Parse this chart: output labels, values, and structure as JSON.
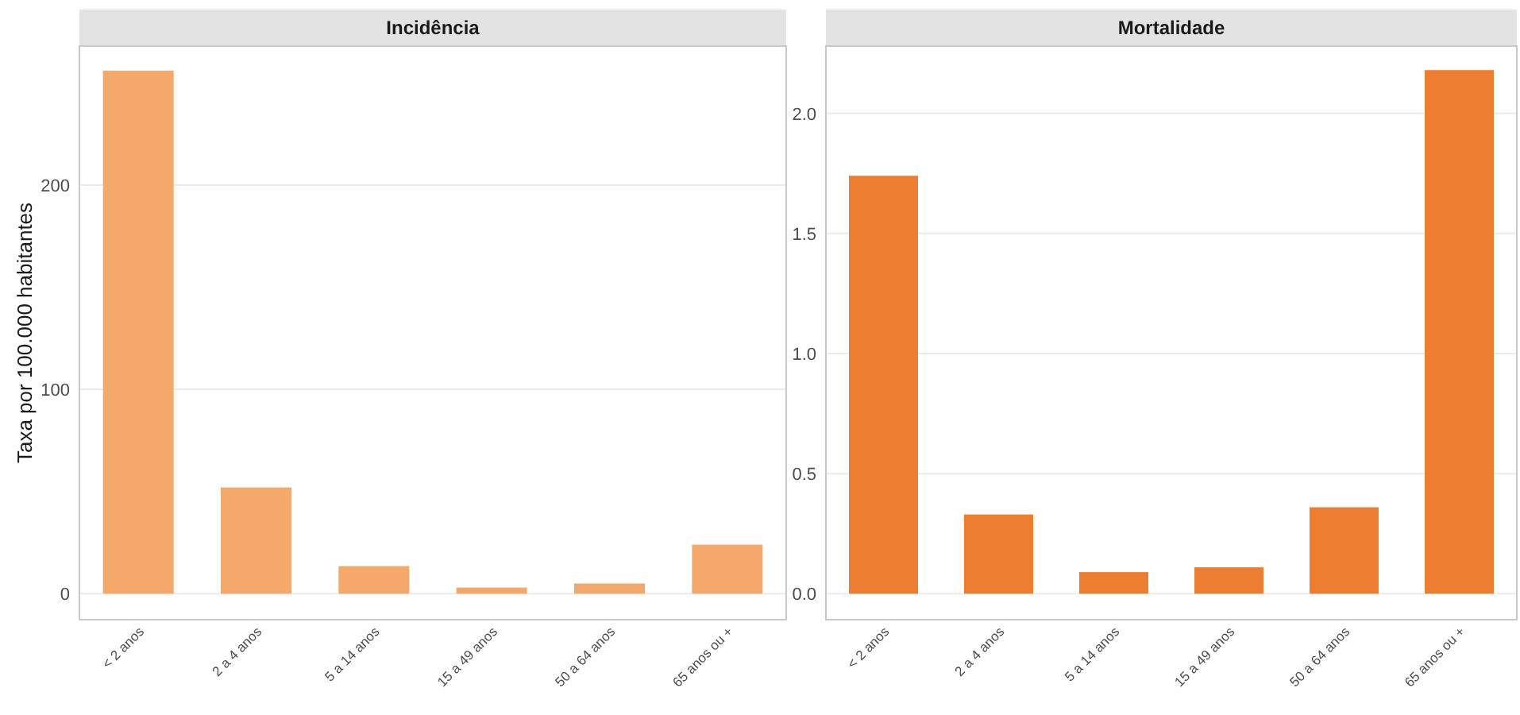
{
  "chart_data": [
    {
      "type": "bar",
      "title": "Incidência",
      "ylabel": "Taxa por 100.000 habitantes",
      "categories": [
        "< 2 anos",
        "2 a 4 anos",
        "5 a 14 anos",
        "15 a 49 anos",
        "50 a 64 anos",
        "65 anos ou +"
      ],
      "values": [
        256,
        52,
        13.5,
        3,
        5,
        24
      ],
      "color": "#f4a96a",
      "ylim": [
        -12.7,
        268
      ],
      "yticks": [
        0,
        100,
        200
      ],
      "grid": "y"
    },
    {
      "type": "bar",
      "title": "Mortalidade",
      "categories": [
        "< 2 anos",
        "2 a 4 anos",
        "5 a 14 anos",
        "15 a 49 anos",
        "50 a 64 anos",
        "65 anos ou +"
      ],
      "values": [
        1.74,
        0.33,
        0.09,
        0.11,
        0.36,
        2.18
      ],
      "color": "#ed7d31",
      "ylim": [
        -0.108,
        2.28
      ],
      "yticks": [
        {
          "value": 0,
          "label": "0.0"
        },
        {
          "value": 0.5,
          "label": "0.5"
        },
        {
          "value": 1,
          "label": "1.0"
        },
        {
          "value": 1.5,
          "label": "1.5"
        },
        {
          "value": 2,
          "label": "2.0"
        }
      ],
      "grid": "y"
    }
  ]
}
